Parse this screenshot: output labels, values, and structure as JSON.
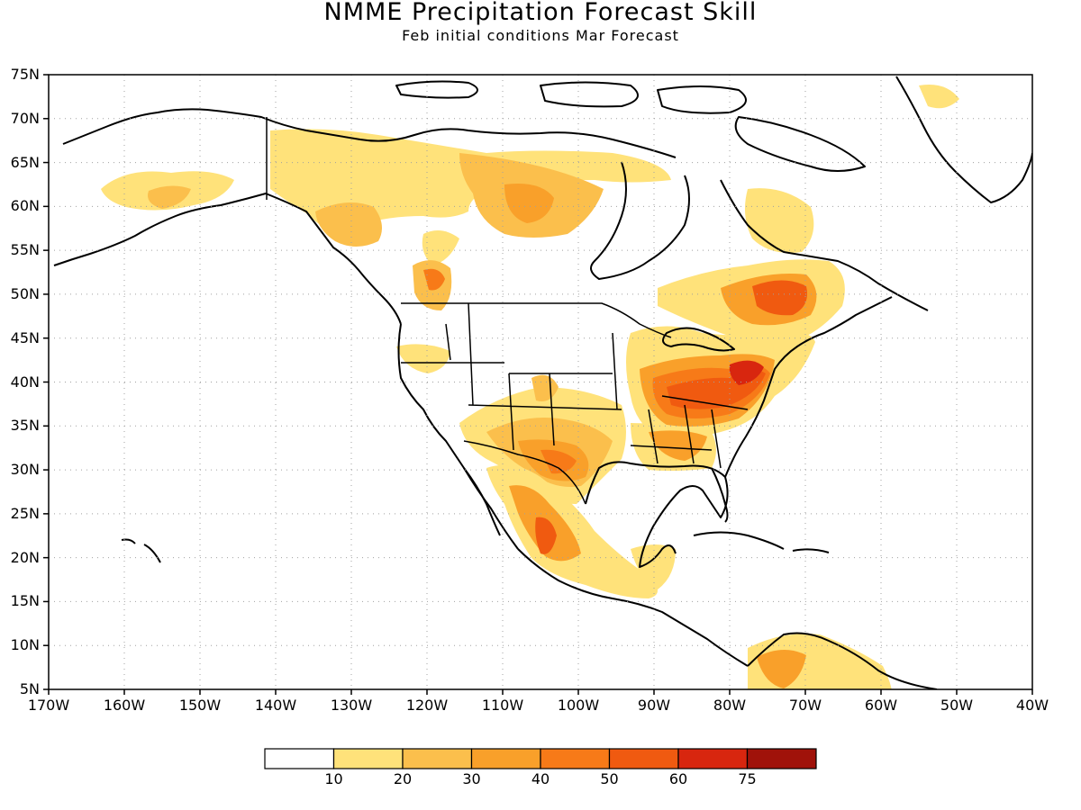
{
  "title": "NMME Precipitation Forecast Skill",
  "subtitle": "Feb initial conditions  Mar Forecast",
  "map": {
    "lon_range": [
      -170,
      -40
    ],
    "lat_range": [
      5,
      75
    ],
    "lat_ticks": [
      "75N",
      "70N",
      "65N",
      "60N",
      "55N",
      "50N",
      "45N",
      "40N",
      "35N",
      "30N",
      "25N",
      "20N",
      "15N",
      "10N",
      "5N"
    ],
    "lon_ticks": [
      "170W",
      "160W",
      "150W",
      "140W",
      "130W",
      "120W",
      "110W",
      "100W",
      "90W",
      "80W",
      "70W",
      "60W",
      "50W",
      "40W"
    ],
    "gridlines": "dotted",
    "variable": "precipitation forecast skill"
  },
  "colorbar": {
    "labels": [
      "10",
      "20",
      "30",
      "40",
      "50",
      "60",
      "75"
    ],
    "colors": [
      "#ffffff",
      "#ffe27a",
      "#fbbf4c",
      "#f9a02a",
      "#f77a18",
      "#f05a10",
      "#d8260f",
      "#a0120a"
    ]
  },
  "regions": [
    {
      "id": "alaska-skill",
      "level": 1,
      "lon": -150,
      "lat": 61.5
    },
    {
      "id": "canada-west-skill",
      "level": 2,
      "lon": -125,
      "lat": 58
    },
    {
      "id": "pacific-nw-skill",
      "level": 4,
      "lon": -119,
      "lat": 51.5
    },
    {
      "id": "hudson-bay-west",
      "level": 3,
      "lon": -107,
      "lat": 61
    },
    {
      "id": "quebec-skill",
      "level": 5,
      "lon": -72,
      "lat": 50.5
    },
    {
      "id": "ohio-valley-skill",
      "level": 5,
      "lon": -83,
      "lat": 38.5
    },
    {
      "id": "mid-atlantic-skill",
      "level": 6,
      "lon": -78,
      "lat": 41
    },
    {
      "id": "southern-plains-skill",
      "level": 3,
      "lon": -100,
      "lat": 31
    },
    {
      "id": "mexico-west-skill",
      "level": 5,
      "lon": -105,
      "lat": 22
    },
    {
      "id": "south-america-skill",
      "level": 3,
      "lon": -73,
      "lat": 7
    }
  ]
}
